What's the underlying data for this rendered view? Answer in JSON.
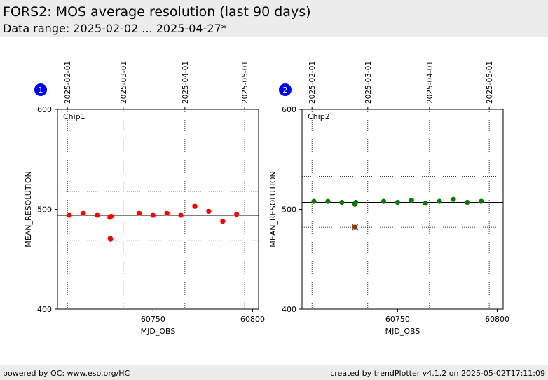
{
  "header": {
    "title": "FORS2: MOS average resolution (last 90 days)",
    "subtitle": "Data range: 2025-02-02 ... 2025-04-27*"
  },
  "footer": {
    "left": "powered by QC: www.eso.org/HC",
    "right": "created by trendPlotter v4.1.2 on 2025-05-02T17:11:09"
  },
  "colors": {
    "chip1_points": "#ff0000",
    "chip2_points": "#008000",
    "outlier": "#ff0000",
    "header_bg": "#ececec"
  },
  "chart_data": [
    {
      "type": "scatter",
      "panel_number": "1",
      "label": "Chip1",
      "xlabel": "MJD_OBS",
      "ylabel": "MEAN_RESOLUTION",
      "xlim": [
        60702,
        60803
      ],
      "ylim": [
        400,
        600
      ],
      "xticks": [
        60750,
        60800
      ],
      "yticks": [
        400,
        500,
        600
      ],
      "date_ticks": [
        {
          "label": "2025-02-01",
          "mjd": 60707
        },
        {
          "label": "2025-03-01",
          "mjd": 60735
        },
        {
          "label": "2025-04-01",
          "mjd": 60766
        },
        {
          "label": "2025-05-01",
          "mjd": 60796
        }
      ],
      "mean_line": 494,
      "sigma_lines": [
        518,
        469
      ],
      "grid": true,
      "points": [
        {
          "x": 60708,
          "y": 494
        },
        {
          "x": 60715,
          "y": 496
        },
        {
          "x": 60722,
          "y": 494
        },
        {
          "x": 60728.3,
          "y": 492
        },
        {
          "x": 60728.5,
          "y": 471
        },
        {
          "x": 60728.7,
          "y": 470
        },
        {
          "x": 60729,
          "y": 493
        },
        {
          "x": 60743,
          "y": 496
        },
        {
          "x": 60750,
          "y": 494
        },
        {
          "x": 60757,
          "y": 496
        },
        {
          "x": 60764,
          "y": 494
        },
        {
          "x": 60771,
          "y": 503
        },
        {
          "x": 60778,
          "y": 498
        },
        {
          "x": 60785,
          "y": 488
        },
        {
          "x": 60792,
          "y": 495
        }
      ],
      "outliers": []
    },
    {
      "type": "scatter",
      "panel_number": "2",
      "label": "Chip2",
      "xlabel": "MJD_OBS",
      "ylabel": "MEAN_RESOLUTION",
      "xlim": [
        60702,
        60803
      ],
      "ylim": [
        400,
        600
      ],
      "xticks": [
        60750,
        60800
      ],
      "yticks": [
        400,
        500,
        600
      ],
      "date_ticks": [
        {
          "label": "2025-02-01",
          "mjd": 60707
        },
        {
          "label": "2025-03-01",
          "mjd": 60735
        },
        {
          "label": "2025-04-01",
          "mjd": 60766
        },
        {
          "label": "2025-05-01",
          "mjd": 60796
        }
      ],
      "mean_line": 507,
      "sigma_lines": [
        533,
        482
      ],
      "grid": true,
      "points": [
        {
          "x": 60708,
          "y": 508
        },
        {
          "x": 60715,
          "y": 508
        },
        {
          "x": 60722,
          "y": 507
        },
        {
          "x": 60728.5,
          "y": 505
        },
        {
          "x": 60729,
          "y": 507
        },
        {
          "x": 60743,
          "y": 508
        },
        {
          "x": 60750,
          "y": 507
        },
        {
          "x": 60757,
          "y": 509
        },
        {
          "x": 60764,
          "y": 506
        },
        {
          "x": 60771,
          "y": 508
        },
        {
          "x": 60778,
          "y": 510
        },
        {
          "x": 60785,
          "y": 507
        },
        {
          "x": 60792,
          "y": 508
        }
      ],
      "outliers": [
        {
          "x": 60728.6,
          "y": 482
        }
      ]
    }
  ]
}
